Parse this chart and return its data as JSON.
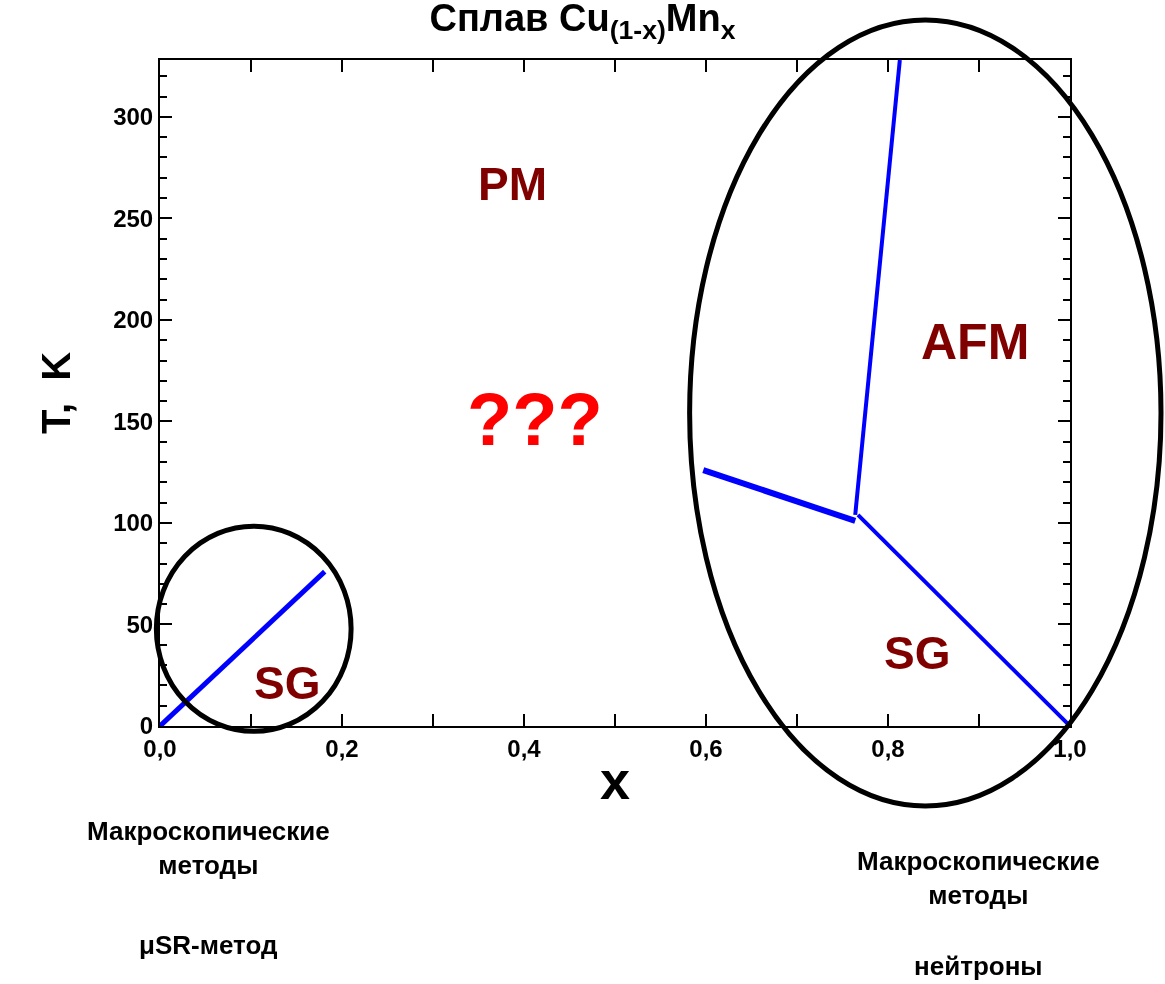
{
  "chart_data": {
    "type": "line",
    "title": "Сплав Cu$_{(1-x)}$Mn$_{x}$",
    "xlabel": "x",
    "ylabel": "T,  K",
    "series": [
      {
        "color": "#0000ff",
        "x": [
          0.0,
          0.181
        ],
        "values": [
          0,
          76
        ]
      },
      {
        "color": "#0000ff",
        "x": [
          0.597,
          0.764
        ],
        "values": [
          126,
          101
        ]
      },
      {
        "color": "#0000ff",
        "x": [
          0.764,
          0.813
        ],
        "values": [
          104,
          328
        ]
      },
      {
        "color": "#0000ff",
        "x": [
          0.767,
          1.0
        ],
        "values": [
          104,
          0
        ]
      }
    ],
    "xlim": [
      0,
      1.0
    ],
    "ylim": [
      0,
      328
    ],
    "xticks": [
      {
        "value": 0,
        "label": "0,0"
      },
      {
        "value": 0.1,
        "label": null
      },
      {
        "value": 0.2,
        "label": "0,2"
      },
      {
        "value": 0.3,
        "label": null
      },
      {
        "value": 0.4,
        "label": "0,4"
      },
      {
        "value": 0.5,
        "label": null
      },
      {
        "value": 0.6,
        "label": "0,6"
      },
      {
        "value": 0.7,
        "label": null
      },
      {
        "value": 0.8,
        "label": "0,8"
      },
      {
        "value": 0.9,
        "label": null
      },
      {
        "value": 1.0,
        "label": "1,0"
      }
    ],
    "yticks": [
      0,
      {
        "value": 10,
        "label": null
      },
      {
        "value": 20,
        "label": null
      },
      {
        "value": 30,
        "label": null
      },
      {
        "value": 40,
        "label": null
      },
      50,
      {
        "value": 60,
        "label": null
      },
      {
        "value": 70,
        "label": null
      },
      {
        "value": 80,
        "label": null
      },
      {
        "value": 90,
        "label": null
      },
      100,
      {
        "value": 110,
        "label": null
      },
      {
        "value": 120,
        "label": null
      },
      {
        "value": 130,
        "label": null
      },
      {
        "value": 140,
        "label": null
      },
      150,
      {
        "value": 160,
        "label": null
      },
      {
        "value": 170,
        "label": null
      },
      {
        "value": 180,
        "label": null
      },
      {
        "value": 190,
        "label": null
      },
      200,
      {
        "value": 210,
        "label": null
      },
      {
        "value": 220,
        "label": null
      },
      {
        "value": 230,
        "label": null
      },
      {
        "value": 240,
        "label": null
      },
      250,
      {
        "value": 260,
        "label": null
      },
      {
        "value": 270,
        "label": null
      },
      {
        "value": 280,
        "label": null
      },
      {
        "value": 290,
        "label": null
      },
      300,
      {
        "value": 310,
        "label": null
      },
      {
        "value": 320,
        "label": null
      }
    ],
    "marker": "none",
    "line_style": "solid",
    "annotations": [
      "PM",
      "???",
      "AFM",
      "SG",
      "SG",
      "Макроскопические\nметоды",
      "μSR-метод",
      "Макроскопические\nметоды",
      "нейтроны"
    ]
  }
}
